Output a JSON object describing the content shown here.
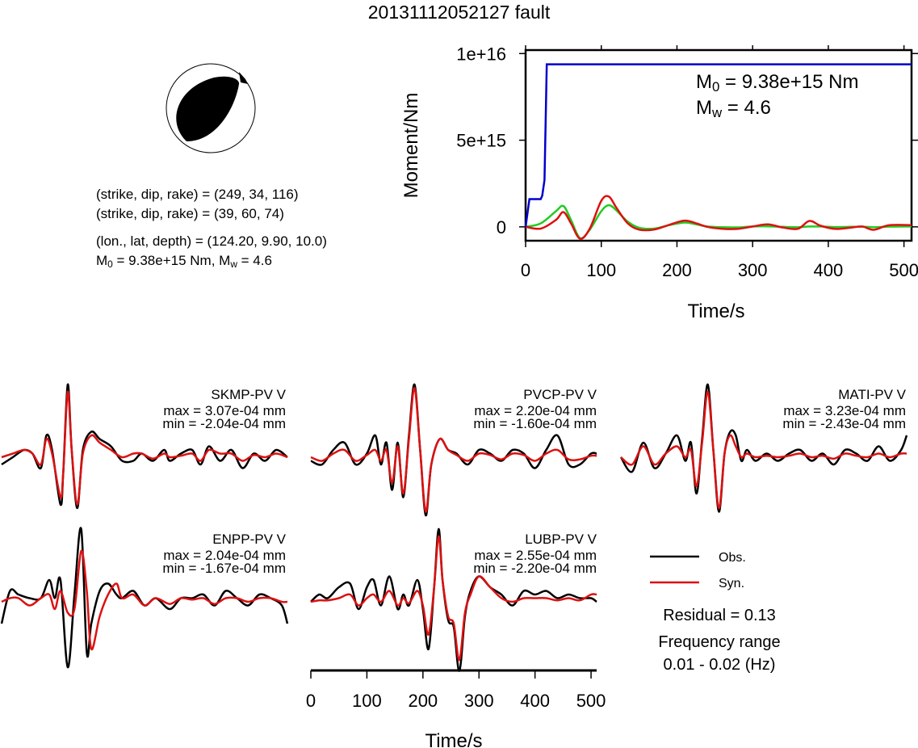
{
  "title": "20131112052127 fault",
  "focal": {
    "line1": "(strike, dip, rake) = (249, 34, 116)",
    "line2": "(strike, dip, rake) = (39, 60, 74)",
    "line3": "(lon., lat, depth) = (124.20, 9.90, 10.0)",
    "m0_symbol": "M",
    "m0_sub": "0",
    "m0_value": " = 9.38e+15 Nm, ",
    "mw_symbol": "M",
    "mw_sub": "w",
    "mw_value": " = 4.6"
  },
  "moment_plot": {
    "ylabel": "Moment/Nm",
    "xlabel": "Time/s",
    "yticks": [
      "0",
      "5e+15",
      "1e+16"
    ],
    "xticks": [
      "0",
      "100",
      "200",
      "300",
      "400",
      "500"
    ],
    "m0_symbol": "M",
    "m0_sub": "0",
    "m0_text": " = 9.38e+15 Nm",
    "mw_symbol": "M",
    "mw_sub": "w",
    "mw_text": " = 4.6"
  },
  "waveforms": {
    "xlabel": "Time/s",
    "xticks": [
      "0",
      "100",
      "200",
      "300",
      "400",
      "500"
    ],
    "stations": [
      {
        "name": "SKMP-PV V",
        "max": "max = 3.07e-04 mm",
        "min": "min = -2.04e-04 mm"
      },
      {
        "name": "PVCP-PV V",
        "max": "max = 2.20e-04 mm",
        "min": "min = -1.60e-04 mm"
      },
      {
        "name": "MATI-PV V",
        "max": "max = 3.23e-04 mm",
        "min": "min = -2.43e-04 mm"
      },
      {
        "name": "ENPP-PV V",
        "max": "max = 2.04e-04 mm",
        "min": "min = -1.67e-04 mm"
      },
      {
        "name": "LUBP-PV V",
        "max": "max = 2.55e-04 mm",
        "min": "min = -2.20e-04 mm"
      }
    ]
  },
  "legend": {
    "obs": "Obs.",
    "syn": "Syn.",
    "residual": "Residual = 0.13",
    "freq_title": "Frequency range",
    "freq_value": "0.01 - 0.02 (Hz)"
  },
  "colors": {
    "observed": "#000000",
    "synthetic": "#dd1111",
    "moment_curve": "#0000cc",
    "stf_green": "#22cc22"
  },
  "chart_data": [
    {
      "type": "line",
      "xlabel": "Time/s",
      "ylabel": "Moment/Nm",
      "xlim": [
        0,
        510
      ],
      "ylim": [
        -800000000000000.0,
        1.02e+16
      ],
      "series": [
        {
          "name": "cumulative moment",
          "x": [
            0,
            5,
            20,
            22,
            25,
            28,
            30,
            510
          ],
          "y": [
            0,
            1600000000000000.0,
            1600000000000000.0,
            1800000000000000.0,
            2700000000000000.0,
            9380000000000000.0,
            9380000000000000.0,
            9380000000000000.0
          ]
        },
        {
          "name": "source function red",
          "x": [
            0,
            20,
            40,
            50,
            60,
            72,
            85,
            100,
            110,
            120,
            135,
            150,
            170,
            190,
            210,
            225,
            240,
            260,
            280,
            300,
            320,
            340,
            360,
            375,
            390,
            410,
            430,
            445,
            460,
            480,
            510
          ],
          "y": [
            0,
            -100000000000000.0,
            400000000000000.0,
            850000000000000.0,
            200000000000000.0,
            -690000000000000.0,
            -80000000000000.0,
            1500000000000000.0,
            1750000000000000.0,
            1100000000000000.0,
            200000000000000.0,
            -160000000000000.0,
            -150000000000000.0,
            120000000000000.0,
            360000000000000.0,
            210000000000000.0,
            0,
            -110000000000000.0,
            -120000000000000.0,
            20000000000000.0,
            140000000000000.0,
            -40000000000000.0,
            -110000000000000.0,
            340000000000000.0,
            60000000000000.0,
            -120000000000000.0,
            -40000000000000.0,
            20000000000000.0,
            -170000000000000.0,
            90000000000000.0,
            100000000000000.0
          ]
        },
        {
          "name": "source function green",
          "x": [
            0,
            20,
            40,
            50,
            60,
            72,
            85,
            100,
            110,
            120,
            135,
            150,
            170,
            190,
            210,
            225,
            240,
            260,
            280,
            300,
            320,
            340,
            360,
            375,
            390,
            410,
            430,
            445,
            460,
            480,
            510
          ],
          "y": [
            0,
            200000000000000.0,
            900000000000000.0,
            1200000000000000.0,
            400000000000000.0,
            -650000000000000.0,
            -150000000000000.0,
            900000000000000.0,
            1250000000000000.0,
            950000000000000.0,
            300000000000000.0,
            -50000000000000.0,
            -100000000000000.0,
            100000000000000.0,
            250000000000000.0,
            150000000000000.0,
            20000000000000.0,
            -20000000000000.0,
            -30000000000000.0,
            20000000000000.0,
            30000000000000.0,
            0,
            -20000000000000.0,
            20000000000000.0,
            20000000000000.0,
            -10000000000000.0,
            0,
            10000000000000.0,
            -20000000000000.0,
            10000000000000.0,
            20000000000000.0
          ]
        }
      ]
    },
    {
      "type": "line",
      "xlabel": "Time/s",
      "xlim": [
        0,
        510
      ],
      "series": [
        {
          "name": "Obs.",
          "station": "SKMP-PV V",
          "x": [
            0,
            20,
            40,
            55,
            70,
            80,
            90,
            105,
            110,
            118,
            125,
            135,
            145,
            160,
            175,
            195,
            215,
            235,
            250,
            270,
            290,
            300,
            320,
            340,
            355,
            370,
            390,
            410,
            430,
            450,
            470,
            490,
            510
          ],
          "y": [
            -0.1,
            0,
            0.1,
            0.05,
            -0.15,
            0.3,
            0.1,
            -0.65,
            -0.2,
            1.0,
            0.1,
            -0.7,
            0.1,
            0.35,
            0.25,
            0.15,
            -0.05,
            -0.05,
            0.05,
            -0.05,
            0.1,
            -0.05,
            0.05,
            0.1,
            -0.1,
            0.15,
            -0.05,
            0.1,
            -0.15,
            0.05,
            -0.05,
            0.1,
            0
          ]
        },
        {
          "name": "Syn.",
          "station": "SKMP-PV V",
          "x": [
            0,
            20,
            40,
            55,
            70,
            80,
            90,
            105,
            110,
            118,
            125,
            135,
            145,
            160,
            175,
            195,
            215,
            235,
            250,
            270,
            290,
            300,
            320,
            340,
            355,
            370,
            390,
            410,
            430,
            450,
            470,
            490,
            510
          ],
          "y": [
            0,
            0.05,
            0.1,
            0.05,
            -0.1,
            0.25,
            0.05,
            -0.55,
            -0.2,
            0.9,
            0.1,
            -0.65,
            0.05,
            0.3,
            0.2,
            0.1,
            0,
            0.05,
            0.05,
            -0.02,
            0.05,
            0,
            0.02,
            0.05,
            -0.05,
            0.1,
            0.05,
            0.05,
            -0.05,
            0.03,
            0,
            0.05,
            0
          ]
        },
        {
          "name": "Obs.",
          "station": "PVCP-PV V",
          "x": [
            0,
            20,
            40,
            60,
            80,
            100,
            115,
            125,
            135,
            145,
            155,
            165,
            175,
            185,
            195,
            205,
            215,
            230,
            245,
            260,
            280,
            300,
            320,
            340,
            360,
            380,
            400,
            420,
            440,
            460,
            480,
            500,
            510
          ],
          "y": [
            -0.05,
            -0.1,
            0.1,
            0.2,
            -0.1,
            0.05,
            0.3,
            -0.1,
            0.2,
            -0.45,
            0.2,
            -0.55,
            0.3,
            1.0,
            0.1,
            -0.8,
            -0.1,
            0.25,
            0.1,
            0.05,
            -0.1,
            0.1,
            0.05,
            -0.05,
            0.1,
            0.05,
            -0.15,
            0.1,
            0.3,
            -0.1,
            -0.1,
            0.05,
            0.05
          ]
        },
        {
          "name": "Syn.",
          "station": "PVCP-PV V",
          "x": [
            0,
            20,
            40,
            60,
            80,
            100,
            115,
            125,
            135,
            145,
            155,
            165,
            175,
            185,
            195,
            205,
            215,
            230,
            245,
            260,
            280,
            300,
            320,
            340,
            360,
            380,
            400,
            420,
            440,
            460,
            480,
            500,
            510
          ],
          "y": [
            0,
            -0.05,
            0.05,
            0.1,
            -0.05,
            0.03,
            0.1,
            -0.05,
            0.1,
            -0.35,
            0.15,
            -0.5,
            0.25,
            0.95,
            0.1,
            -0.75,
            -0.1,
            0.25,
            0.1,
            0.03,
            -0.05,
            0.05,
            0.03,
            -0.03,
            0.05,
            0.03,
            -0.05,
            0.05,
            0.1,
            -0.03,
            -0.03,
            0.02,
            0.02
          ]
        },
        {
          "name": "Obs.",
          "station": "MATI-PV V",
          "x": [
            0,
            20,
            40,
            60,
            80,
            100,
            115,
            125,
            135,
            145,
            155,
            165,
            175,
            185,
            195,
            205,
            215,
            225,
            240,
            260,
            280,
            300,
            320,
            340,
            360,
            380,
            400,
            420,
            440,
            460,
            480,
            500,
            510
          ],
          "y": [
            0,
            -0.2,
            0.2,
            -0.15,
            0.05,
            0.3,
            -0.05,
            0.2,
            -0.5,
            0.25,
            1.0,
            0.1,
            -0.75,
            0.05,
            0.35,
            0.3,
            -0.05,
            0.1,
            -0.05,
            0.05,
            -0.05,
            0.05,
            0.1,
            -0.05,
            0.05,
            -0.1,
            0.1,
            0.05,
            -0.05,
            0.15,
            -0.05,
            0.1,
            0.3
          ]
        },
        {
          "name": "Syn.",
          "station": "MATI-PV V",
          "x": [
            0,
            20,
            40,
            60,
            80,
            100,
            115,
            125,
            135,
            145,
            155,
            165,
            175,
            185,
            195,
            205,
            215,
            225,
            240,
            260,
            280,
            300,
            320,
            340,
            360,
            380,
            400,
            420,
            440,
            460,
            480,
            500,
            510
          ],
          "y": [
            0,
            -0.1,
            0.15,
            -0.1,
            0.05,
            0.15,
            0,
            0.1,
            -0.4,
            0.2,
            0.9,
            0.1,
            -0.7,
            0.05,
            0.3,
            0.15,
            0,
            0.05,
            0,
            0.02,
            0,
            0.02,
            0.05,
            0,
            0.02,
            -0.02,
            0.05,
            0.02,
            0,
            0.05,
            0,
            0.05,
            0.05
          ]
        },
        {
          "name": "Obs.",
          "station": "ENPP-PV V",
          "x": [
            0,
            15,
            30,
            50,
            70,
            85,
            95,
            105,
            118,
            130,
            142,
            152,
            160,
            175,
            190,
            205,
            215,
            235,
            255,
            275,
            300,
            320,
            340,
            360,
            380,
            400,
            420,
            440,
            460,
            480,
            500,
            510
          ],
          "y": [
            -0.3,
            0.15,
            0.1,
            0.05,
            0.05,
            0.3,
            0.05,
            0.3,
            -0.9,
            0.1,
            1.0,
            -0.7,
            -0.3,
            0.15,
            0.25,
            0.1,
            0.05,
            0.15,
            -0.05,
            0.05,
            -0.1,
            0.05,
            0.05,
            0.1,
            -0.05,
            0.15,
            0.05,
            -0.05,
            0.1,
            0.05,
            -0.05,
            -0.3
          ]
        },
        {
          "name": "Syn.",
          "station": "ENPP-PV V",
          "x": [
            0,
            15,
            30,
            50,
            70,
            85,
            95,
            105,
            118,
            130,
            142,
            152,
            160,
            175,
            190,
            205,
            215,
            235,
            255,
            275,
            300,
            320,
            340,
            360,
            380,
            400,
            420,
            440,
            460,
            480,
            500,
            510
          ],
          "y": [
            0,
            0.05,
            0.05,
            -0.05,
            0.05,
            0.1,
            -0.1,
            0.15,
            -0.15,
            -0.1,
            0.7,
            0.15,
            -0.65,
            -0.2,
            0.1,
            0.25,
            0.05,
            0.1,
            -0.05,
            0.05,
            -0.03,
            0.05,
            0.03,
            0.05,
            -0.03,
            0.05,
            0.05,
            0,
            0.05,
            0.05,
            0,
            0
          ]
        },
        {
          "name": "Obs.",
          "station": "LUBP-PV V",
          "x": [
            0,
            15,
            30,
            50,
            70,
            85,
            100,
            112,
            125,
            140,
            155,
            165,
            175,
            190,
            200,
            210,
            220,
            228,
            235,
            245,
            255,
            265,
            275,
            285,
            300,
            320,
            340,
            360,
            380,
            400,
            420,
            440,
            460,
            480,
            500,
            510
          ],
          "y": [
            0,
            0.1,
            0.05,
            0.2,
            0.25,
            -0.1,
            0.2,
            0.3,
            -0.05,
            0.35,
            -0.1,
            0.1,
            -0.05,
            0.3,
            -0.1,
            -0.65,
            0.2,
            1.0,
            0.3,
            -0.25,
            -0.35,
            -0.95,
            -0.2,
            0.15,
            0.35,
            0.2,
            0.1,
            -0.05,
            0.15,
            0.1,
            0.15,
            0.05,
            0.1,
            0.05,
            0.05,
            0
          ]
        },
        {
          "name": "Syn.",
          "station": "LUBP-PV V",
          "x": [
            0,
            15,
            30,
            50,
            70,
            85,
            100,
            112,
            125,
            140,
            155,
            165,
            175,
            190,
            200,
            210,
            220,
            228,
            235,
            245,
            255,
            265,
            275,
            285,
            300,
            320,
            340,
            360,
            380,
            400,
            420,
            440,
            460,
            480,
            500,
            510
          ],
          "y": [
            0,
            0.02,
            0.02,
            0.05,
            0.1,
            -0.05,
            0.05,
            0.1,
            0,
            0.15,
            -0.05,
            0.05,
            -0.02,
            0.15,
            -0.05,
            -0.45,
            0.2,
            0.9,
            0.3,
            -0.2,
            -0.3,
            -0.8,
            -0.15,
            0.1,
            0.35,
            0.2,
            0.05,
            0,
            0.05,
            0.05,
            0.05,
            0.02,
            0.05,
            0.02,
            0.1,
            0.1
          ]
        }
      ]
    }
  ]
}
